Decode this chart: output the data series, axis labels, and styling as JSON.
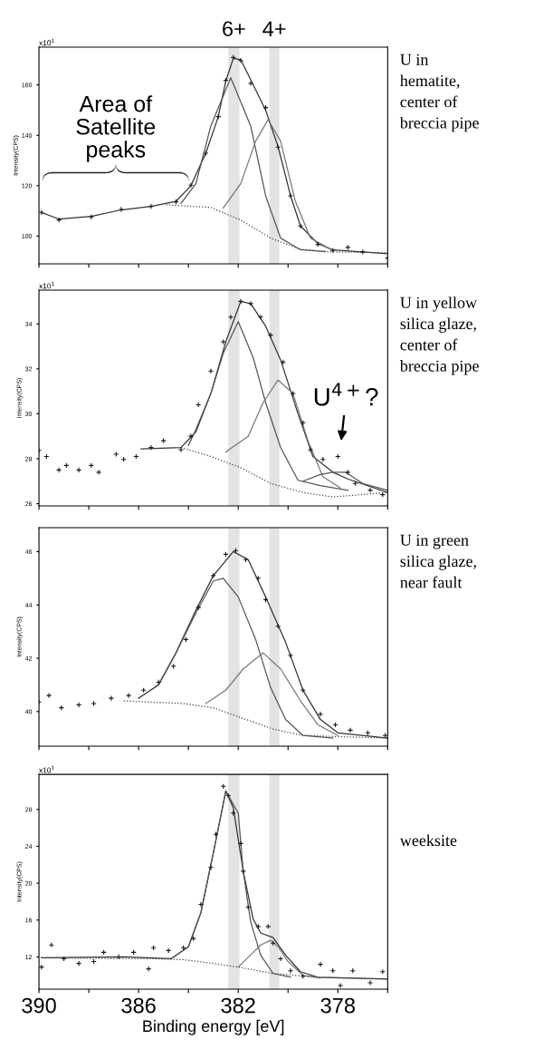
{
  "chart_data": [
    {
      "type": "scatter",
      "ylabel": "Intensity(CPS)",
      "xlim": [
        390,
        376
      ],
      "xticks": [
        {
          "value": 390,
          "label": null
        },
        {
          "value": 388,
          "label": null
        },
        {
          "value": 386,
          "label": null
        },
        {
          "value": 384,
          "label": null
        },
        {
          "value": 382,
          "label": null
        },
        {
          "value": 380,
          "label": null
        },
        {
          "value": 378,
          "label": null
        },
        {
          "value": 376,
          "label": null
        }
      ],
      "ylim": [
        89,
        175
      ],
      "yticks": [
        100,
        120,
        140,
        160
      ],
      "tick_labels": "y",
      "bands": [
        {
          "axis": "x",
          "from": 382.4,
          "to": 381.95,
          "label": "6+",
          "color": "#e3e3e3"
        },
        {
          "axis": "x",
          "from": 380.75,
          "to": 380.35,
          "label": "4+",
          "color": "#e3e3e3"
        }
      ],
      "annotations": [
        "x10$^{1}$",
        "Area of\nSatellite\npeaks",
        "U in\nhematite,\ncenter of\nbreccia pipe"
      ],
      "series": [
        {
          "type": "scatter",
          "marker": "cross",
          "color": "#1a1a1a",
          "x": [
            389.9,
            389.2,
            387.9,
            386.7,
            385.5,
            384.5,
            383.9,
            383.3,
            382.8,
            382.5,
            382.2,
            381.9,
            381.5,
            380.9,
            380.4,
            379.9,
            379.5,
            378.8,
            378.2,
            377.6,
            377.0,
            376.0
          ],
          "values": [
            109.4,
            106.4,
            107.6,
            110.6,
            111.8,
            113.6,
            120.2,
            132.9,
            147.4,
            161.8,
            170.9,
            169.7,
            160.6,
            151,
            135.3,
            116,
            104,
            96.7,
            94.3,
            95.5,
            93.7,
            91.3
          ]
        },
        {
          "type": "line",
          "color": "#333333",
          "line_style": "solid",
          "x": [
            389.9,
            389.2,
            387.9,
            386.7,
            385.5,
            384.5,
            383.9,
            383.3,
            382.8,
            382.5,
            382.2,
            381.9,
            381.5,
            380.9,
            380.4,
            379.9,
            379.5,
            378.8,
            378.2,
            376.0
          ],
          "values": [
            109.4,
            106.8,
            107.8,
            110.4,
            111.8,
            113.8,
            120,
            133,
            147.4,
            161.5,
            170.5,
            170,
            162,
            150,
            135.5,
            116,
            104,
            97,
            94.5,
            93
          ]
        },
        {
          "type": "line",
          "color": "#555555",
          "line_style": "solid",
          "x": [
            384.3,
            383.7,
            383.1,
            382.3,
            381.5,
            380.9,
            380.3,
            379.5,
            378.5
          ],
          "values": [
            113,
            120.8,
            143.7,
            162.8,
            143.7,
            116,
            99.2,
            94.6,
            93.8
          ]
        },
        {
          "type": "line",
          "color": "#777777",
          "line_style": "solid",
          "x": [
            382.6,
            381.9,
            381.3,
            380.8,
            380.3,
            379.7,
            379.1,
            378.2
          ],
          "values": [
            111.2,
            120.8,
            137.7,
            146.2,
            137.7,
            113.6,
            99.2,
            94.3
          ]
        },
        {
          "type": "line",
          "color": "#444444",
          "line_style": "dotted",
          "x": [
            384.9,
            383.1,
            381.9,
            380.7,
            379.5,
            378.2,
            376.0
          ],
          "values": [
            112.4,
            111.4,
            106.4,
            99.2,
            94.7,
            93.7,
            93.4
          ]
        }
      ]
    },
    {
      "type": "scatter",
      "ylabel": "Intensity(CPS)",
      "xlim": [
        390,
        376
      ],
      "xticks": [
        {
          "value": 390,
          "label": null
        },
        {
          "value": 388,
          "label": null
        },
        {
          "value": 386,
          "label": null
        },
        {
          "value": 384,
          "label": null
        },
        {
          "value": 382,
          "label": null
        },
        {
          "value": 380,
          "label": null
        },
        {
          "value": 378,
          "label": null
        },
        {
          "value": 376,
          "label": null
        }
      ],
      "ylim": [
        25.9,
        35.5
      ],
      "yticks": [
        26,
        28,
        30,
        32,
        34
      ],
      "tick_labels": "y",
      "bands": [
        {
          "axis": "x",
          "from": 382.4,
          "to": 381.95,
          "color": "#e3e3e3"
        },
        {
          "axis": "x",
          "from": 380.75,
          "to": 380.35,
          "color": "#e3e3e3"
        }
      ],
      "annotations": [
        "x10$^{1}$",
        "U$^{4+}$?",
        "U in yellow\nsilica glaze,\ncenter of\nbreccia pipe"
      ],
      "series": [
        {
          "type": "scatter",
          "marker": "cross",
          "color": "#1a1a1a",
          "x": [
            390.0,
            389.7,
            389.2,
            388.9,
            388.4,
            387.9,
            387.6,
            386.9,
            386.6,
            386.1,
            385.5,
            385.0,
            384.3,
            383.9,
            383.6,
            383.1,
            382.6,
            382.3,
            381.9,
            381.5,
            381.1,
            380.7,
            380.2,
            379.8,
            379.4,
            379.1,
            378.6,
            378.0,
            377.6,
            377.3,
            376.7,
            376.2
          ],
          "values": [
            28.37,
            28.1,
            27.5,
            27.7,
            27.5,
            27.7,
            27.4,
            28.2,
            27.97,
            28.1,
            28.5,
            28.8,
            28.4,
            29,
            30.4,
            31.9,
            33.2,
            34.3,
            35,
            34.9,
            34.3,
            33.5,
            32.3,
            30.9,
            29.6,
            28.4,
            27.97,
            28.1,
            27.4,
            26.9,
            26.6,
            26.4
          ]
        },
        {
          "type": "line",
          "color": "#333333",
          "line_style": "solid",
          "x": [
            385.9,
            384.3,
            383.7,
            383.1,
            382.5,
            381.9,
            381.5,
            380.9,
            380.3,
            379.6,
            379.0,
            378.2,
            377.6,
            376.0
          ],
          "values": [
            28.44,
            28.5,
            29.2,
            30.9,
            33.2,
            35,
            34.9,
            33.9,
            32.4,
            30,
            28.1,
            27.4,
            27.1,
            26.5
          ]
        },
        {
          "type": "line",
          "color": "#555555",
          "line_style": "solid",
          "x": [
            384.0,
            383.7,
            383.1,
            382.6,
            382.0,
            381.4,
            380.9,
            380.3,
            379.6,
            378.7,
            377.6
          ],
          "values": [
            28.6,
            29.3,
            30.9,
            32.7,
            34.1,
            32.5,
            30.5,
            28.5,
            27.04,
            26.8,
            26.6
          ]
        },
        {
          "type": "line",
          "color": "#777777",
          "line_style": "solid",
          "x": [
            382.5,
            381.6,
            381.0,
            380.4,
            379.8,
            379.2,
            378.6,
            377.9
          ],
          "values": [
            28.3,
            29,
            30.5,
            31.5,
            30.9,
            28.8,
            27.2,
            26.7
          ]
        },
        {
          "type": "line",
          "color": "#555555",
          "line_style": "solid",
          "x": [
            379.4,
            378.7,
            378.2,
            377.7,
            377.0,
            376.0
          ],
          "values": [
            27,
            27.3,
            27.4,
            27.4,
            26.9,
            26.6
          ]
        },
        {
          "type": "line",
          "color": "#444444",
          "line_style": "dotted",
          "x": [
            384.3,
            383.1,
            381.9,
            380.7,
            379.4,
            378.2,
            376.0
          ],
          "values": [
            28.5,
            28.1,
            27.6,
            26.9,
            26.5,
            26.3,
            26.5
          ]
        }
      ]
    },
    {
      "type": "scatter",
      "annotations": [
        "U in green\nsilica glaze,\nnear fault"
      ],
      "ylabel": "Intensity(CPS)",
      "xlim": [
        390,
        376
      ],
      "xticks": [
        {
          "value": 390,
          "label": null
        },
        {
          "value": 388,
          "label": null
        },
        {
          "value": 386,
          "label": null
        },
        {
          "value": 384,
          "label": null
        },
        {
          "value": 382,
          "label": null
        },
        {
          "value": 380,
          "label": null
        },
        {
          "value": 378,
          "label": null
        },
        {
          "value": 376,
          "label": null
        }
      ],
      "ylim": [
        38.7,
        46.9
      ],
      "yticks": [
        40,
        42,
        44,
        46
      ],
      "tick_labels": "y",
      "bands": [
        {
          "axis": "x",
          "from": 382.4,
          "to": 381.95,
          "color": "#e3e3e3"
        },
        {
          "axis": "x",
          "from": 380.75,
          "to": 380.35,
          "color": "#e3e3e3"
        }
      ],
      "series": [
        {
          "type": "scatter",
          "marker": "cross",
          "color": "#1a1a1a",
          "x": [
            390.0,
            389.6,
            389.1,
            388.4,
            387.8,
            387.1,
            386.4,
            385.8,
            385.2,
            384.6,
            384.1,
            383.6,
            383.0,
            382.5,
            382.1,
            381.7,
            381.2,
            380.9,
            380.4,
            379.9,
            379.4,
            378.7,
            378.1,
            377.5,
            376.8,
            376.1
          ],
          "values": [
            40.36,
            40.6,
            40.14,
            40.25,
            40.3,
            40.5,
            40.6,
            40.8,
            41.1,
            41.7,
            42.7,
            43.9,
            45.1,
            45.9,
            46.04,
            45.7,
            45,
            44.2,
            43.2,
            42.1,
            40.8,
            39.9,
            39.5,
            39.3,
            39.2,
            39.1
          ]
        },
        {
          "type": "line",
          "color": "#333333",
          "line_style": "solid",
          "x": [
            386.0,
            385.2,
            384.5,
            383.7,
            383.0,
            382.2,
            381.6,
            380.9,
            380.1,
            379.4,
            378.7,
            378.0,
            376.0
          ],
          "values": [
            40.5,
            41,
            42.2,
            43.8,
            45.1,
            46,
            45.7,
            44.3,
            42.6,
            40.8,
            39.7,
            39.2,
            39
          ]
        },
        {
          "type": "line",
          "color": "#555555",
          "line_style": "solid",
          "x": [
            385.2,
            384.5,
            383.7,
            383.0,
            382.6,
            382.0,
            381.3,
            380.7,
            380.1,
            379.4,
            378.2
          ],
          "values": [
            41,
            42.2,
            43.7,
            44.9,
            45,
            44.3,
            42.7,
            40.9,
            39.7,
            39.1,
            39
          ]
        },
        {
          "type": "line",
          "color": "#777777",
          "line_style": "solid",
          "x": [
            383.3,
            382.5,
            381.8,
            381.0,
            380.3,
            379.5,
            378.8,
            378.0
          ],
          "values": [
            40.3,
            40.8,
            41.6,
            42.2,
            41.6,
            40.4,
            39.5,
            39.1
          ]
        },
        {
          "type": "line",
          "color": "#444444",
          "line_style": "dotted",
          "x": [
            386.6,
            384.2,
            383.0,
            381.8,
            380.6,
            379.4,
            376.0
          ],
          "values": [
            40.4,
            40.3,
            40.14,
            39.74,
            39.34,
            39.1,
            39
          ]
        }
      ]
    },
    {
      "type": "scatter",
      "xlabel": "Binding energy [eV]",
      "ylabel": "Intensity(CPS)",
      "xlim": [
        390,
        376
      ],
      "xticks": [
        390,
        {
          "value": 388,
          "label": null
        },
        386,
        {
          "value": 384,
          "label": null
        },
        382,
        {
          "value": 380,
          "label": null
        },
        378,
        {
          "value": 376,
          "label": null
        }
      ],
      "ylim": [
        8.5,
        31.8
      ],
      "yticks": [
        12,
        16,
        20,
        24,
        28
      ],
      "bands": [
        {
          "axis": "x",
          "from": 382.4,
          "to": 381.95,
          "color": "#e3e3e3"
        },
        {
          "axis": "x",
          "from": 380.75,
          "to": 380.35,
          "color": "#e3e3e3"
        }
      ],
      "annotations": [
        "x10$^{1}$",
        "weeksite"
      ],
      "series": [
        {
          "type": "scatter",
          "marker": "cross",
          "color": "#1a1a1a",
          "x": [
            389.9,
            389.5,
            389.0,
            388.4,
            387.8,
            387.4,
            386.8,
            386.2,
            385.6,
            385.4,
            384.8,
            384.2,
            383.8,
            383.5,
            383.1,
            382.9,
            382.6,
            382.4,
            382.2,
            381.9,
            381.8,
            381.6,
            381.2,
            380.8,
            380.6,
            380.3,
            379.9,
            379.4,
            378.7,
            378.2,
            377.9,
            377.4,
            376.7,
            376.2
          ],
          "values": [
            10.9,
            13.3,
            11.8,
            11.3,
            11.5,
            12.5,
            12,
            12.5,
            10.7,
            13,
            12.7,
            13,
            14,
            17.7,
            21.7,
            25.3,
            30.5,
            29.5,
            27.6,
            24.3,
            21.3,
            17.4,
            15.3,
            15.3,
            13.5,
            11.8,
            10.5,
            9.9,
            11.2,
            10.5,
            8.9,
            10.5,
            9.2,
            10.4
          ]
        },
        {
          "type": "line",
          "color": "#333333",
          "line_style": "solid",
          "x": [
            389.9,
            386.6,
            384.7,
            384.0,
            383.5,
            383.0,
            382.6,
            382.5,
            382.2,
            381.8,
            381.4,
            381.1,
            380.6,
            380.1,
            379.5,
            378.8,
            376.0
          ],
          "values": [
            11.9,
            12,
            11.8,
            13.1,
            16.8,
            23.3,
            28.6,
            30,
            28.2,
            21.3,
            16.1,
            14.6,
            14.1,
            12.2,
            10.4,
            9.8,
            9.6
          ]
        },
        {
          "type": "line",
          "color": "#555555",
          "line_style": "solid",
          "x": [
            384.7,
            384.0,
            383.5,
            383.0,
            382.5,
            382.0,
            381.8,
            381.5,
            381.1,
            380.6,
            379.9
          ],
          "values": [
            11.8,
            13.1,
            16.8,
            23.3,
            30,
            27.6,
            21.3,
            15.8,
            12.2,
            10.2,
            9.8
          ]
        },
        {
          "type": "line",
          "color": "#777777",
          "line_style": "solid",
          "x": [
            382.0,
            381.4,
            381.1,
            380.7,
            380.4,
            380.0,
            379.4,
            378.7
          ],
          "values": [
            10.9,
            12.5,
            13.3,
            13.8,
            13.1,
            11.5,
            10,
            9.7
          ]
        },
        {
          "type": "line",
          "color": "#444444",
          "line_style": "dotted",
          "x": [
            389.9,
            385.4,
            384.2,
            383.0,
            382.0,
            380.6,
            378.8,
            376.0
          ],
          "values": [
            11.9,
            11.8,
            11.7,
            11.3,
            10.9,
            10.2,
            9.8,
            9.6
          ]
        }
      ]
    }
  ]
}
